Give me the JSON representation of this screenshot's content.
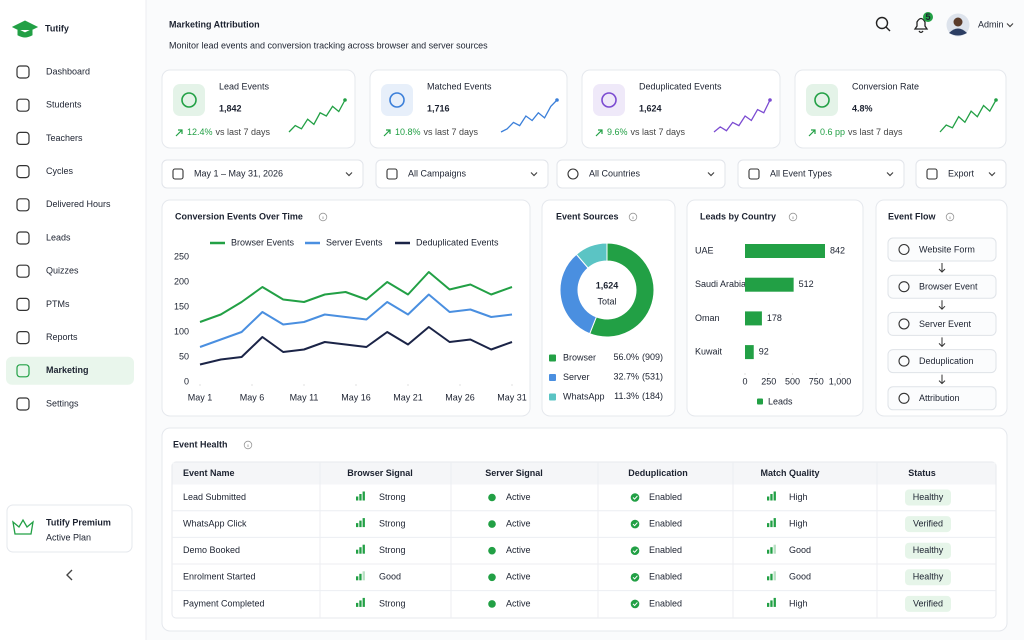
{
  "brand": "Tutify",
  "nav": {
    "items": [
      "Dashboard",
      "Students",
      "Teachers",
      "Cycles",
      "Delivered Hours",
      "Leads",
      "Quizzes",
      "PTMs",
      "Reports",
      "Marketing",
      "Settings"
    ],
    "active": 9
  },
  "premium": {
    "title": "Tutify Premium",
    "subtitle": "Active Plan"
  },
  "header": {
    "title": "Marketing Attribution",
    "subtitle": "Monitor lead events and conversion tracking across browser and server sources",
    "notifications": "5",
    "user": "Admin"
  },
  "kpis": [
    {
      "label": "Lead Events",
      "value": "1,842",
      "change": "12.4%",
      "note": "vs last 7 days",
      "color": "#22a045",
      "spark": [
        3,
        4,
        3.5,
        5,
        4.2,
        6,
        5.5,
        7,
        6.2,
        8
      ]
    },
    {
      "label": "Matched Events",
      "value": "1,716",
      "change": "10.8%",
      "note": "vs last 7 days",
      "color": "#3b7fd9",
      "spark": [
        3,
        3.5,
        4.5,
        4,
        5.5,
        4.8,
        6,
        5.2,
        7,
        8
      ]
    },
    {
      "label": "Deduplicated Events",
      "value": "1,624",
      "change": "9.6%",
      "note": "vs last 7 days",
      "color": "#7b4bd1",
      "spark": [
        3,
        3.8,
        3.2,
        4.5,
        4,
        5.5,
        4.8,
        6.5,
        6,
        8
      ]
    },
    {
      "label": "Conversion Rate",
      "value": "4.8%",
      "change": "0.6 pp",
      "note": "vs last 7 days",
      "color": "#22a045",
      "spark": [
        3,
        4,
        3.6,
        5.2,
        4.4,
        6,
        5.2,
        6.8,
        6,
        7.6
      ]
    }
  ],
  "filters": [
    "May 1 – May 31, 2026",
    "All Campaigns",
    "All Countries",
    "All Event Types",
    "Export"
  ],
  "events_chart": {
    "type": "line",
    "title": "Conversion Events Over Time",
    "x": [
      1,
      3,
      5,
      7,
      9,
      11,
      13,
      15,
      17,
      19,
      21,
      23,
      25,
      27,
      29,
      31
    ],
    "xlim": [
      1,
      31
    ],
    "xticks": [
      {
        "value": 1,
        "label": "May 1"
      },
      {
        "value": 6,
        "label": "May 6"
      },
      {
        "value": 11,
        "label": "May 11"
      },
      {
        "value": 16,
        "label": "May 16"
      },
      {
        "value": 21,
        "label": "May 21"
      },
      {
        "value": 26,
        "label": "May 26"
      },
      {
        "value": 31,
        "label": "May 31"
      }
    ],
    "ylim": [
      0,
      250
    ],
    "yticks": [
      0,
      50,
      100,
      150,
      200,
      250
    ],
    "series": [
      {
        "name": "Browser Events",
        "color": "#22a045",
        "values": [
          120,
          135,
          160,
          190,
          165,
          160,
          175,
          180,
          165,
          200,
          175,
          220,
          185,
          195,
          175,
          190
        ]
      },
      {
        "name": "Server Events",
        "color": "#4a8fe0",
        "values": [
          70,
          85,
          100,
          140,
          115,
          120,
          135,
          130,
          125,
          160,
          135,
          175,
          140,
          145,
          130,
          135
        ]
      },
      {
        "name": "Deduplicated Events",
        "color": "#1b2447",
        "values": [
          35,
          45,
          50,
          90,
          60,
          65,
          80,
          75,
          70,
          100,
          75,
          110,
          80,
          85,
          65,
          80
        ]
      }
    ]
  },
  "sources_chart": {
    "type": "pie",
    "title": "Event Sources",
    "center_value": "1,624",
    "center_label": "Total",
    "categories": [
      "Browser",
      "Server",
      "WhatsApp"
    ],
    "values": [
      56.0,
      32.7,
      11.3
    ],
    "value_labels": [
      "56.0%",
      "32.7%",
      "11.3%"
    ],
    "counts": [
      909,
      531,
      184
    ],
    "count_labels": [
      "(909)",
      "(531)",
      "(184)"
    ],
    "colors": [
      "#22a045",
      "#4a8fe0",
      "#5bc4c4"
    ]
  },
  "country_chart": {
    "type": "bar",
    "orientation": "horizontal",
    "title": "Leads by Country",
    "categories": [
      "UAE",
      "Saudi Arabia",
      "Oman",
      "Kuwait"
    ],
    "series": [
      {
        "name": "Leads",
        "color": "#22a045",
        "values": [
          842,
          512,
          178,
          92
        ]
      }
    ],
    "xlim": [
      0,
      1000
    ],
    "xticks": [
      0,
      250,
      500,
      750,
      {
        "value": 1000,
        "label": "1,000"
      }
    ]
  },
  "flow": {
    "title": "Event Flow",
    "steps": [
      "Website Form",
      "Browser Event",
      "Server Event",
      "Deduplication",
      "Attribution"
    ]
  },
  "table": {
    "title": "Event Health",
    "columns": [
      "Event Name",
      "Browser Signal",
      "Server Signal",
      "Deduplication",
      "Match Quality",
      "Status"
    ],
    "rows": [
      [
        {
          "text": "Lead Submitted"
        },
        {
          "text": "Strong",
          "bars": 3
        },
        {
          "text": "Active"
        },
        {
          "text": "Enabled"
        },
        {
          "text": "High",
          "bars": 3
        },
        {
          "text": "Healthy"
        }
      ],
      [
        {
          "text": "WhatsApp Click"
        },
        {
          "text": "Strong",
          "bars": 3
        },
        {
          "text": "Active"
        },
        {
          "text": "Enabled"
        },
        {
          "text": "High",
          "bars": 3
        },
        {
          "text": "Verified"
        }
      ],
      [
        {
          "text": "Demo Booked"
        },
        {
          "text": "Strong",
          "bars": 3
        },
        {
          "text": "Active"
        },
        {
          "text": "Enabled"
        },
        {
          "text": "Good",
          "bars": 2
        },
        {
          "text": "Healthy"
        }
      ],
      [
        {
          "text": "Enrolment Started"
        },
        {
          "text": "Good",
          "bars": 2
        },
        {
          "text": "Active"
        },
        {
          "text": "Enabled"
        },
        {
          "text": "Good",
          "bars": 2
        },
        {
          "text": "Healthy"
        }
      ],
      [
        {
          "text": "Payment Completed"
        },
        {
          "text": "Strong",
          "bars": 3
        },
        {
          "text": "Active"
        },
        {
          "text": "Enabled"
        },
        {
          "text": "High",
          "bars": 3
        },
        {
          "text": "Verified"
        }
      ]
    ]
  }
}
